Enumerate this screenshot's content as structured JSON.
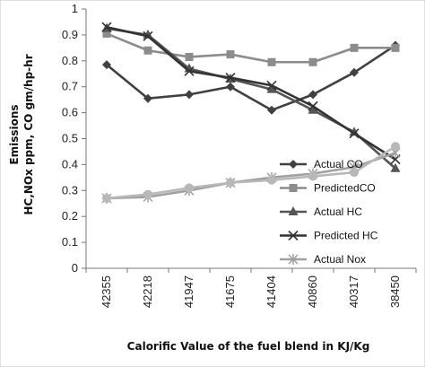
{
  "chart_data": {
    "type": "line",
    "title": "",
    "xlabel": "Calorific Value of the fuel blend in KJ/Kg",
    "ylabel_lines": [
      "Emissions",
      "HC,NOx  ppm, CO gm/hp-hr"
    ],
    "categories": [
      "42355",
      "42218",
      "41947",
      "41675",
      "41404",
      "40860",
      "40317",
      "38450"
    ],
    "ylim": [
      0,
      1
    ],
    "yticks": [
      "0",
      "0.1",
      "0.2",
      "0.3",
      "0.4",
      "0.5",
      "0.6",
      "0.7",
      "0.8",
      "0.9",
      "1"
    ],
    "grid": false,
    "legend_position": "right",
    "series": [
      {
        "name": "Actual CO",
        "color": "#404040",
        "marker": "diamond",
        "values": [
          0.785,
          0.655,
          0.67,
          0.7,
          0.61,
          0.67,
          0.755,
          0.86
        ]
      },
      {
        "name": "PredictedCO",
        "color": "#8c8c8c",
        "marker": "square",
        "values": [
          0.905,
          0.84,
          0.815,
          0.825,
          0.795,
          0.795,
          0.85,
          0.85
        ]
      },
      {
        "name": "Actual HC",
        "color": "#555555",
        "marker": "triangle",
        "values": [
          0.925,
          0.9,
          0.77,
          0.73,
          0.69,
          0.61,
          0.525,
          0.385
        ]
      },
      {
        "name": "Predicted HC",
        "color": "#333333",
        "marker": "x",
        "values": [
          0.93,
          0.895,
          0.76,
          0.735,
          0.705,
          0.625,
          0.52,
          0.42
        ]
      },
      {
        "name": "Actual Nox",
        "color": "#a0a0a0",
        "marker": "star",
        "values": [
          0.27,
          0.275,
          0.3,
          0.33,
          0.35,
          0.365,
          0.39,
          0.445
        ]
      },
      {
        "name": "",
        "color": "#b8b8b8",
        "marker": "circle",
        "values": [
          0.27,
          0.285,
          0.31,
          0.33,
          0.34,
          0.355,
          0.37,
          0.47
        ]
      }
    ]
  }
}
